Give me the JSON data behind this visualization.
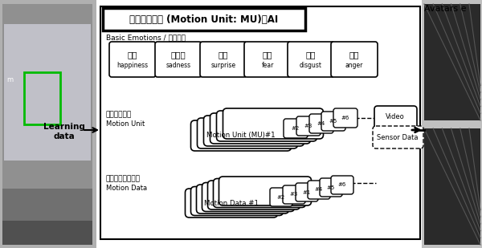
{
  "title": "動作ユニット (Motion Unit: MU)　AI",
  "bg_color": "#ffffff",
  "emotions": [
    {
      "ja": "喜び",
      "en": "happiness"
    },
    {
      "ja": "悲しみ",
      "en": "sadness"
    },
    {
      "ja": "驚き",
      "en": "surprise"
    },
    {
      "ja": "恐れ",
      "en": "fear"
    },
    {
      "ja": "嫌悪",
      "en": "disgust"
    },
    {
      "ja": "怒り",
      "en": "anger"
    }
  ],
  "mu_label_ja": "動作ユニット",
  "mu_label_en": "Motion Unit",
  "md_label_ja": "モーションデータ",
  "md_label_en": "Motion Data",
  "mu_main": "Motion Unit (MU)#1",
  "md_main": "Motion Data #1",
  "mu_numbers": [
    "#2",
    "#3",
    "#4",
    "#5",
    "#6"
  ],
  "md_numbers": [
    "#2",
    "#3",
    "#1",
    "#4",
    "#5",
    "#6"
  ],
  "video_label": "Video",
  "sensor_label": "Sensor Data",
  "learning_label": "Learning\ndata",
  "basic_emotions_label": "Basic Emotions / 基本感情",
  "avatars_label": "Avatars e"
}
